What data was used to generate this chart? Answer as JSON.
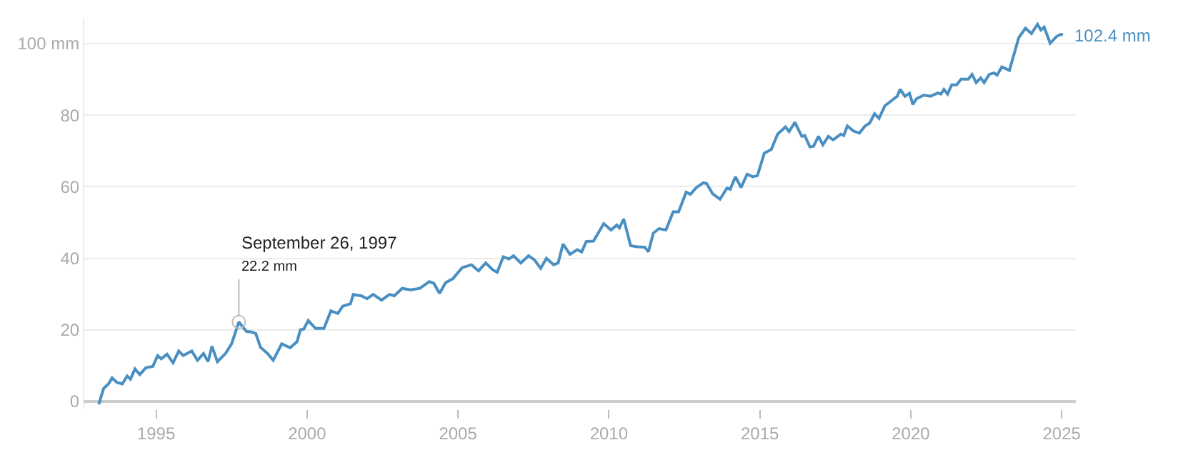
{
  "chart_data": {
    "type": "line",
    "xlim": [
      1992.62,
      2025.47
    ],
    "ylim": [
      -2,
      107
    ],
    "xticks": [
      1995,
      2000,
      2005,
      2010,
      2015,
      2020,
      2025
    ],
    "yticks": [
      0,
      20,
      40,
      60,
      {
        "value": 80,
        "label": "80"
      },
      {
        "value": 100,
        "label": "100 mm"
      }
    ],
    "grid": "y",
    "marker": "none",
    "line_style": "solid",
    "annotations": [
      {
        "text": "September 26, 1997\n22.2 mm",
        "x": 1997.74,
        "y": 22.2
      },
      {
        "text": "102.4 mm",
        "x": 2025.04,
        "y": 102.4
      }
    ],
    "series": [
      {
        "color": "#4a8fc2",
        "x": [
          1993.1,
          1993.26,
          1993.42,
          1993.54,
          1993.7,
          1993.88,
          1994.04,
          1994.15,
          1994.3,
          1994.46,
          1994.66,
          1994.89,
          1995.05,
          1995.17,
          1995.36,
          1995.56,
          1995.75,
          1995.9,
          1996.18,
          1996.37,
          1996.57,
          1996.72,
          1996.85,
          1997.03,
          1997.3,
          1997.5,
          1997.74,
          1997.99,
          1998.15,
          1998.3,
          1998.46,
          1998.69,
          1998.88,
          1999.16,
          1999.44,
          1999.67,
          1999.78,
          1999.89,
          2000.04,
          2000.28,
          2000.56,
          2000.79,
          2001.02,
          2001.18,
          2001.44,
          2001.53,
          2001.8,
          2001.99,
          2002.19,
          2002.47,
          2002.73,
          2002.89,
          2003.15,
          2003.43,
          2003.74,
          2004.05,
          2004.2,
          2004.39,
          2004.59,
          2004.83,
          2005.14,
          2005.45,
          2005.68,
          2005.92,
          2006.15,
          2006.3,
          2006.5,
          2006.69,
          2006.84,
          2007.08,
          2007.34,
          2007.54,
          2007.74,
          2007.93,
          2008.17,
          2008.32,
          2008.48,
          2008.71,
          2008.95,
          2009.1,
          2009.25,
          2009.49,
          2009.83,
          2010.07,
          2010.26,
          2010.35,
          2010.49,
          2010.72,
          2010.95,
          2011.19,
          2011.31,
          2011.47,
          2011.66,
          2011.89,
          2012.13,
          2012.31,
          2012.56,
          2012.7,
          2012.9,
          2013.13,
          2013.24,
          2013.44,
          2013.68,
          2013.91,
          2014.02,
          2014.19,
          2014.38,
          2014.58,
          2014.76,
          2014.92,
          2015.15,
          2015.38,
          2015.59,
          2015.85,
          2015.97,
          2016.16,
          2016.39,
          2016.49,
          2016.66,
          2016.78,
          2016.94,
          2017.09,
          2017.27,
          2017.43,
          2017.68,
          2017.78,
          2017.9,
          2018.1,
          2018.3,
          2018.49,
          2018.64,
          2018.8,
          2018.95,
          2019.14,
          2019.34,
          2019.55,
          2019.65,
          2019.81,
          2019.96,
          2020.07,
          2020.19,
          2020.43,
          2020.66,
          2020.9,
          2021.0,
          2021.1,
          2021.22,
          2021.36,
          2021.52,
          2021.67,
          2021.91,
          2022.03,
          2022.17,
          2022.32,
          2022.43,
          2022.6,
          2022.76,
          2022.86,
          2023.02,
          2023.27,
          2023.38,
          2023.58,
          2023.8,
          2024.0,
          2024.2,
          2024.31,
          2024.42,
          2024.62,
          2024.83,
          2024.98,
          2025.04
        ],
        "values": [
          -0.8,
          3.6,
          4.9,
          6.6,
          5.3,
          4.9,
          7.1,
          6.2,
          9.1,
          7.5,
          9.4,
          9.8,
          12.8,
          11.9,
          13.2,
          10.8,
          14.1,
          12.8,
          14.1,
          11.5,
          13.4,
          11.1,
          15.4,
          11.1,
          13.4,
          16.1,
          22.2,
          19.6,
          19.4,
          19.0,
          15.1,
          13.4,
          11.5,
          16.1,
          15.0,
          16.7,
          20.0,
          20.2,
          22.6,
          20.4,
          20.4,
          25.3,
          24.6,
          26.6,
          27.3,
          29.9,
          29.5,
          28.7,
          29.9,
          28.3,
          29.9,
          29.5,
          31.6,
          31.2,
          31.6,
          33.5,
          33.0,
          30.2,
          33.2,
          34.3,
          37.4,
          38.2,
          36.5,
          38.7,
          36.8,
          36.1,
          40.4,
          39.8,
          40.7,
          38.7,
          40.7,
          39.5,
          37.2,
          40.0,
          38.2,
          38.7,
          44.0,
          41.1,
          42.4,
          41.8,
          44.7,
          44.8,
          49.7,
          47.9,
          49.3,
          48.5,
          51.0,
          43.5,
          43.2,
          43.1,
          41.8,
          47.0,
          48.3,
          47.9,
          53.0,
          53.0,
          58.5,
          57.9,
          59.8,
          61.1,
          60.9,
          58.0,
          56.5,
          59.6,
          59.3,
          62.8,
          59.8,
          63.5,
          62.8,
          63.1,
          69.4,
          70.4,
          74.7,
          76.7,
          75.4,
          78.0,
          74.1,
          74.3,
          71.1,
          71.3,
          74.1,
          71.7,
          74.1,
          73.1,
          74.7,
          74.3,
          77.0,
          75.6,
          75.0,
          77.0,
          77.8,
          80.4,
          79.1,
          82.6,
          83.9,
          85.3,
          87.2,
          85.3,
          86.1,
          83.0,
          84.6,
          85.6,
          85.3,
          86.2,
          85.9,
          87.2,
          85.9,
          88.5,
          88.5,
          90.1,
          90.1,
          91.4,
          89.1,
          90.4,
          89.1,
          91.4,
          91.8,
          91.2,
          93.5,
          92.5,
          95.8,
          101.7,
          104.3,
          102.8,
          105.4,
          103.8,
          104.6,
          100.1,
          102.0,
          102.6,
          102.4
        ]
      }
    ]
  }
}
